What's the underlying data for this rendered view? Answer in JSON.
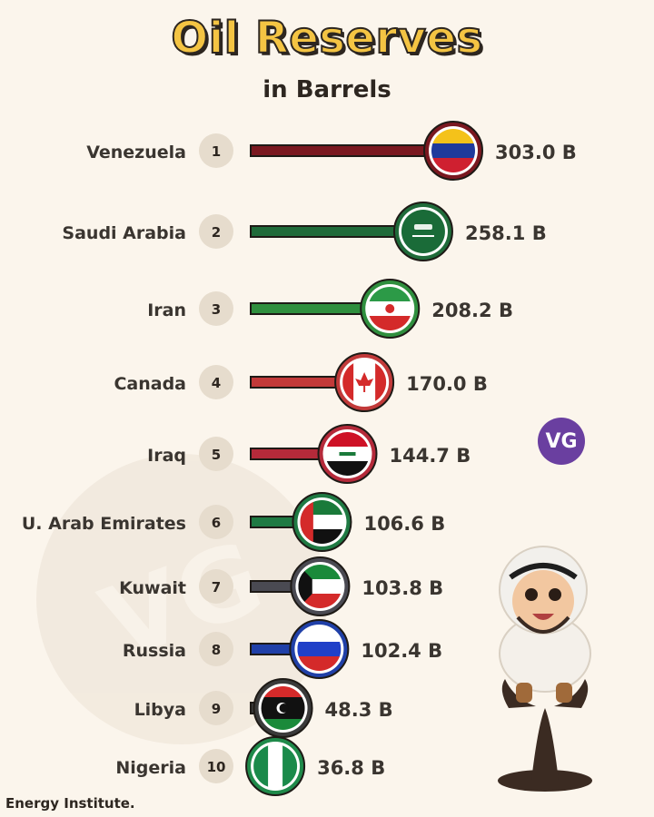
{
  "header": {
    "title": "Oil Reserves",
    "subtitle": "in Barrels"
  },
  "footer": {
    "source": "Energy Institute."
  },
  "badge": {
    "text": "VG"
  },
  "colors": {
    "background": "#fbf5ec",
    "title_fill": "#f4c443",
    "text_dark": "#2d2620",
    "rank_circle": "#e6dccd",
    "badge": "#6a3fa0"
  },
  "chart_data": {
    "type": "bar",
    "orientation": "horizontal",
    "title": "Oil Reserves",
    "subtitle": "in Barrels",
    "unit": "B",
    "xlim": [
      0,
      303.0
    ],
    "grid": false,
    "legend": "none",
    "categories": [
      "Venezuela",
      "Saudi Arabia",
      "Iran",
      "Canada",
      "Iraq",
      "U. Arab Emirates",
      "Kuwait",
      "Russia",
      "Libya",
      "Nigeria"
    ],
    "ranks": [
      "1",
      "2",
      "3",
      "4",
      "5",
      "6",
      "7",
      "8",
      "9",
      "10"
    ],
    "values": [
      303.0,
      258.1,
      208.2,
      170.0,
      144.7,
      106.6,
      103.8,
      102.4,
      48.3,
      36.8
    ],
    "value_labels": [
      "303.0 B",
      "258.1 B",
      "208.2 B",
      "170.0 B",
      "144.7 B",
      "106.6 B",
      "103.8 B",
      "102.4 B",
      "48.3 B",
      "36.8 B"
    ],
    "bar_colors": [
      "#7a1820",
      "#1f6b3a",
      "#2f8f3e",
      "#c23a3a",
      "#b52a3a",
      "#1f7a43",
      "#4a4a52",
      "#2040a8",
      "#3a3a3a",
      "#1f8a4a"
    ],
    "flag_icons": [
      "flag-venezuela-icon",
      "flag-saudi-arabia-icon",
      "flag-iran-icon",
      "flag-canada-icon",
      "flag-iraq-icon",
      "flag-uae-icon",
      "flag-kuwait-icon",
      "flag-russia-icon",
      "flag-libya-icon",
      "flag-nigeria-icon"
    ]
  }
}
